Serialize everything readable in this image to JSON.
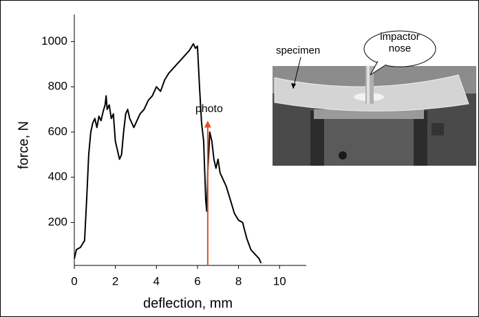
{
  "chart_data": {
    "type": "line",
    "xlabel": "deflection, mm",
    "ylabel": "force, N",
    "x": [
      0,
      0.1,
      0.3,
      0.5,
      0.6,
      0.7,
      0.8,
      0.9,
      1.0,
      1.1,
      1.2,
      1.3,
      1.4,
      1.5,
      1.55,
      1.6,
      1.7,
      1.8,
      1.9,
      2.0,
      2.1,
      2.2,
      2.3,
      2.4,
      2.5,
      2.6,
      2.7,
      2.8,
      2.9,
      3.0,
      3.2,
      3.4,
      3.6,
      3.8,
      4.0,
      4.2,
      4.4,
      4.6,
      4.8,
      5.0,
      5.2,
      5.4,
      5.6,
      5.8,
      5.9,
      6.0,
      6.1,
      6.2,
      6.3,
      6.4,
      6.45,
      6.5,
      6.6,
      6.7,
      6.8,
      6.9,
      7.0,
      7.1,
      7.2,
      7.4,
      7.6,
      7.8,
      8.0,
      8.2,
      8.4,
      8.6,
      8.8,
      9.0,
      9.1
    ],
    "values": [
      40,
      80,
      90,
      120,
      300,
      500,
      600,
      640,
      660,
      620,
      670,
      650,
      690,
      720,
      760,
      700,
      720,
      660,
      680,
      560,
      520,
      480,
      500,
      600,
      680,
      700,
      660,
      640,
      620,
      640,
      680,
      700,
      740,
      760,
      800,
      780,
      830,
      860,
      880,
      900,
      920,
      940,
      960,
      990,
      970,
      980,
      800,
      640,
      560,
      300,
      250,
      420,
      600,
      560,
      480,
      440,
      480,
      420,
      400,
      360,
      300,
      240,
      210,
      200,
      130,
      80,
      60,
      40,
      20
    ],
    "color": "#000000",
    "xlim": [
      0,
      11.3
    ],
    "ylim": [
      10,
      1120
    ],
    "xticks": [
      0,
      2,
      4,
      6,
      8,
      10
    ],
    "yticks": [
      200,
      400,
      600,
      800,
      1000
    ],
    "annotation": {
      "text": "photo",
      "x": 6.5,
      "y": 650,
      "color": "#e0501e"
    },
    "image_labels": {
      "specimen": "specimen",
      "callout": "impactor nose"
    }
  }
}
